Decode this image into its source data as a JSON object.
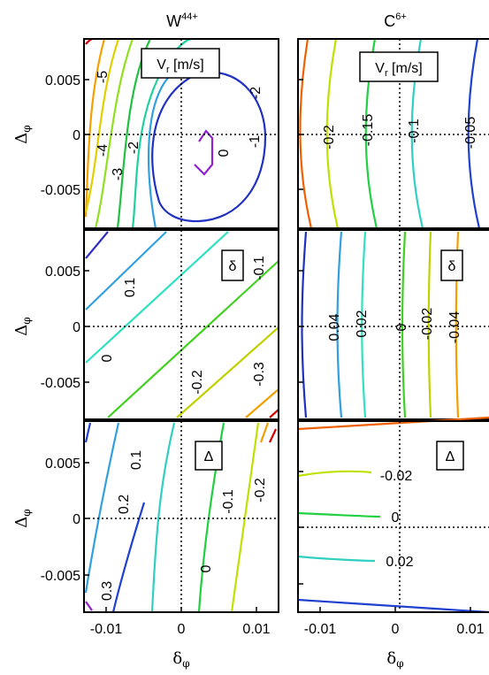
{
  "column_titles": [
    {
      "base": "W",
      "sup": "44+"
    },
    {
      "base": "C",
      "sup": "6+"
    }
  ],
  "y_axis_title": {
    "base": "Δ",
    "sub": "φ"
  },
  "x_axis_title": {
    "base": "δ",
    "sub": "φ"
  },
  "y_ticks": [
    "0.005",
    "0",
    "-0.005"
  ],
  "x_ticks": [
    "-0.01",
    "0",
    "0.01"
  ],
  "chart_data": [
    {
      "type": "contour",
      "id": "w44-vr",
      "panel_label": "V",
      "panel_label_sub": "r",
      "panel_label_rest": " [m/s]",
      "xlim": [
        -0.013,
        0.013
      ],
      "ylim": [
        -0.008,
        0.008
      ],
      "contour_labels": [
        "-5",
        "-4",
        "-3",
        "-2",
        "-2",
        "-1",
        "0",
        "-2"
      ],
      "contour_colors": [
        "#d00000",
        "#f5a000",
        "#e0d000",
        "#90e020",
        "#20c040",
        "#20d0a0",
        "#30a0e0",
        "#2030c0",
        "#9020d0"
      ]
    },
    {
      "type": "contour",
      "id": "c6-vr",
      "panel_label": "V",
      "panel_label_sub": "r",
      "panel_label_rest": " [m/s]",
      "xlim": [
        -0.013,
        0.013
      ],
      "ylim": [
        -0.008,
        0.008
      ],
      "contour_labels": [
        "-0.2",
        "-0.15",
        "-0.1",
        "-0.05"
      ],
      "contour_colors": [
        "#f06000",
        "#c0e000",
        "#20d040",
        "#30d0c0",
        "#2040d0"
      ]
    },
    {
      "type": "contour",
      "id": "w44-delta-small",
      "panel_label": "δ",
      "xlim": [
        -0.013,
        0.013
      ],
      "ylim": [
        -0.008,
        0.008
      ],
      "contour_labels": [
        "0.1",
        "0",
        "-0.1",
        "-0.2",
        "-0.3"
      ],
      "contour_colors": [
        "#3030c0",
        "#30a0e0",
        "#30e0c0",
        "#40d020",
        "#c0d000",
        "#f0a000",
        "#d00000"
      ]
    },
    {
      "type": "contour",
      "id": "c6-delta-small",
      "panel_label": "δ",
      "xlim": [
        -0.013,
        0.013
      ],
      "ylim": [
        -0.008,
        0.008
      ],
      "contour_labels": [
        "0.04",
        "0.02",
        "0",
        "-0.02",
        "-0.04"
      ],
      "contour_colors": [
        "#2030c0",
        "#30a0e0",
        "#30e0c0",
        "#40d020",
        "#c0d000",
        "#f0a000"
      ]
    },
    {
      "type": "contour",
      "id": "w44-delta-cap",
      "panel_label": "Δ",
      "xlim": [
        -0.013,
        0.013
      ],
      "ylim": [
        -0.008,
        0.008
      ],
      "contour_labels": [
        "0.1",
        "0.2",
        "0.3",
        "0",
        "-0.1",
        "-0.2"
      ],
      "contour_colors": [
        "#9020d0",
        "#2040d0",
        "#30a0e0",
        "#30d0c0",
        "#20d040",
        "#c0e000",
        "#f0a000",
        "#d00000"
      ]
    },
    {
      "type": "contour",
      "id": "c6-delta-cap",
      "panel_label": "Δ",
      "xlim": [
        -0.013,
        0.013
      ],
      "ylim": [
        -0.008,
        0.008
      ],
      "contour_labels": [
        "-0.02",
        "0",
        "0.02"
      ],
      "contour_colors": [
        "#f06000",
        "#c0e000",
        "#20d040",
        "#30d0c0",
        "#2040d0"
      ]
    }
  ]
}
